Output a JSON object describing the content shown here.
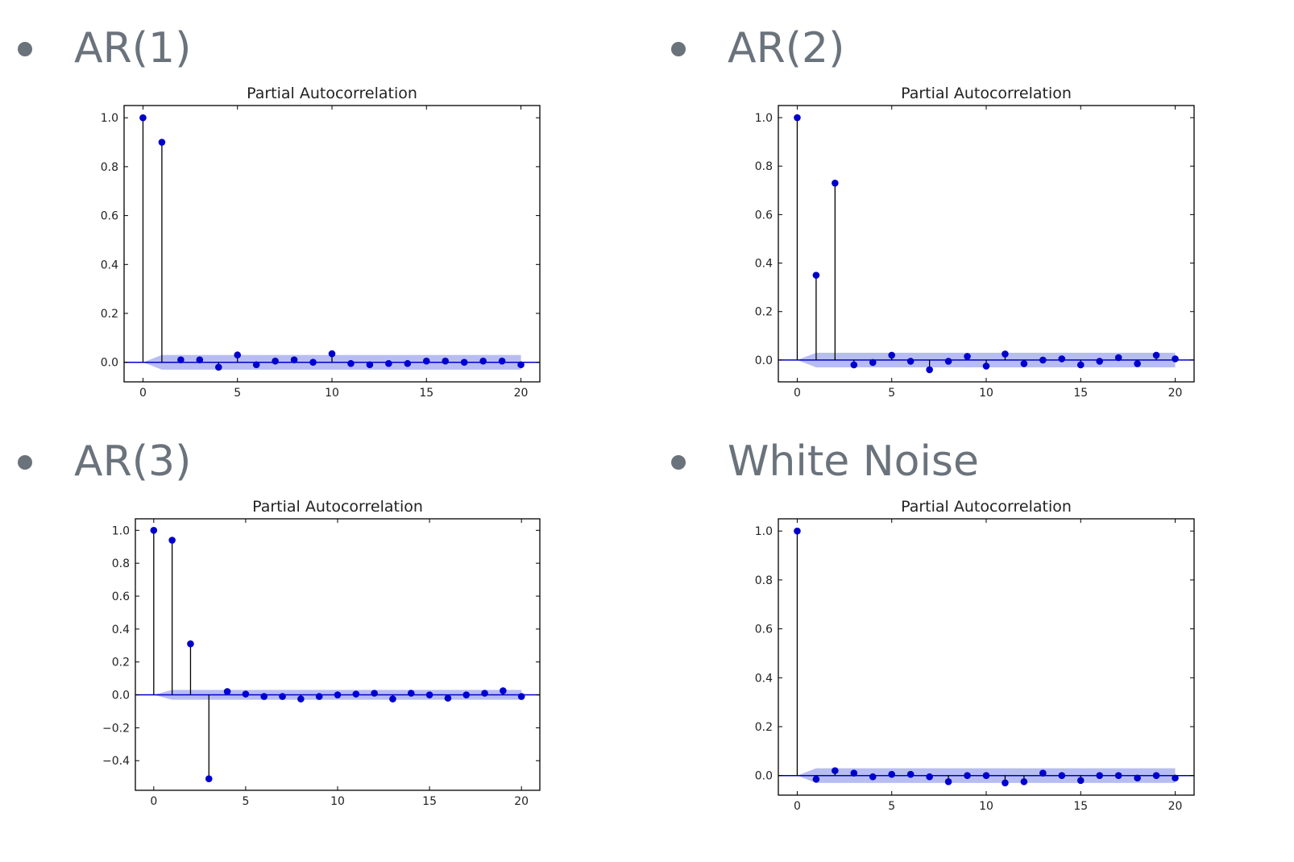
{
  "panels": [
    {
      "heading": "AR(1)",
      "chart_data": {
        "type": "stem",
        "title": "Partial Autocorrelation",
        "x": [
          0,
          1,
          2,
          3,
          4,
          5,
          6,
          7,
          8,
          9,
          10,
          11,
          12,
          13,
          14,
          15,
          16,
          17,
          18,
          19,
          20
        ],
        "values": [
          1.0,
          0.9,
          0.01,
          0.01,
          -0.02,
          0.03,
          -0.01,
          0.005,
          0.01,
          0.0,
          0.035,
          -0.005,
          -0.01,
          -0.005,
          -0.005,
          0.005,
          0.005,
          0.0,
          0.005,
          0.005,
          -0.01
        ],
        "confidence_band": [
          -0.03,
          0.03
        ],
        "xlim": [
          -1,
          21
        ],
        "ylim": [
          -0.08,
          1.05
        ],
        "xticks": [
          0,
          5,
          10,
          15,
          20
        ],
        "yticks": [
          0.0,
          0.2,
          0.4,
          0.6,
          0.8,
          1.0
        ],
        "colors": {
          "marker": "#0000cc",
          "stem": "#000000",
          "band": "#aab2f0",
          "zero_line": "#0000cc"
        }
      }
    },
    {
      "heading": "AR(2)",
      "chart_data": {
        "type": "stem",
        "title": "Partial Autocorrelation",
        "x": [
          0,
          1,
          2,
          3,
          4,
          5,
          6,
          7,
          8,
          9,
          10,
          11,
          12,
          13,
          14,
          15,
          16,
          17,
          18,
          19,
          20
        ],
        "values": [
          1.0,
          0.35,
          0.73,
          -0.02,
          -0.01,
          0.02,
          -0.005,
          -0.04,
          -0.005,
          0.015,
          -0.025,
          0.025,
          -0.015,
          0.0,
          0.005,
          -0.02,
          -0.005,
          0.01,
          -0.015,
          0.02,
          0.005
        ],
        "confidence_band": [
          -0.03,
          0.03
        ],
        "xlim": [
          -1,
          21
        ],
        "ylim": [
          -0.09,
          1.05
        ],
        "xticks": [
          0,
          5,
          10,
          15,
          20
        ],
        "yticks": [
          0.0,
          0.2,
          0.4,
          0.6,
          0.8,
          1.0
        ],
        "colors": {
          "marker": "#0000cc",
          "stem": "#000000",
          "band": "#aab2f0",
          "zero_line": "#0000cc"
        }
      }
    },
    {
      "heading": "AR(3)",
      "chart_data": {
        "type": "stem",
        "title": "Partial Autocorrelation",
        "x": [
          0,
          1,
          2,
          3,
          4,
          5,
          6,
          7,
          8,
          9,
          10,
          11,
          12,
          13,
          14,
          15,
          16,
          17,
          18,
          19,
          20
        ],
        "values": [
          1.0,
          0.94,
          0.31,
          -0.51,
          0.02,
          0.005,
          -0.01,
          -0.01,
          -0.025,
          -0.01,
          0.0,
          0.005,
          0.01,
          -0.025,
          0.01,
          0.0,
          -0.02,
          0.0,
          0.01,
          0.025,
          -0.01
        ],
        "confidence_band": [
          -0.03,
          0.03
        ],
        "xlim": [
          -1,
          21
        ],
        "ylim": [
          -0.58,
          1.07
        ],
        "xticks": [
          0,
          5,
          10,
          15,
          20
        ],
        "yticks": [
          -0.4,
          -0.2,
          0.0,
          0.2,
          0.4,
          0.6,
          0.8,
          1.0
        ],
        "colors": {
          "marker": "#0000cc",
          "stem": "#000000",
          "band": "#aab2f0",
          "zero_line": "#0000cc"
        }
      }
    },
    {
      "heading": "White Noise",
      "chart_data": {
        "type": "stem",
        "title": "Partial Autocorrelation",
        "x": [
          0,
          1,
          2,
          3,
          4,
          5,
          6,
          7,
          8,
          9,
          10,
          11,
          12,
          13,
          14,
          15,
          16,
          17,
          18,
          19,
          20
        ],
        "values": [
          1.0,
          -0.015,
          0.02,
          0.01,
          -0.005,
          0.005,
          0.005,
          -0.005,
          -0.025,
          0.0,
          0.0,
          -0.03,
          -0.025,
          0.01,
          0.0,
          -0.02,
          0.0,
          0.0,
          -0.01,
          0.0,
          -0.01
        ],
        "confidence_band": [
          -0.03,
          0.03
        ],
        "xlim": [
          -1,
          21
        ],
        "ylim": [
          -0.08,
          1.05
        ],
        "xticks": [
          0,
          5,
          10,
          15,
          20
        ],
        "yticks": [
          0.0,
          0.2,
          0.4,
          0.6,
          0.8,
          1.0
        ],
        "colors": {
          "marker": "#0000cc",
          "stem": "#000000",
          "band": "#aab2f0",
          "zero_line": "#0000cc"
        }
      }
    }
  ]
}
